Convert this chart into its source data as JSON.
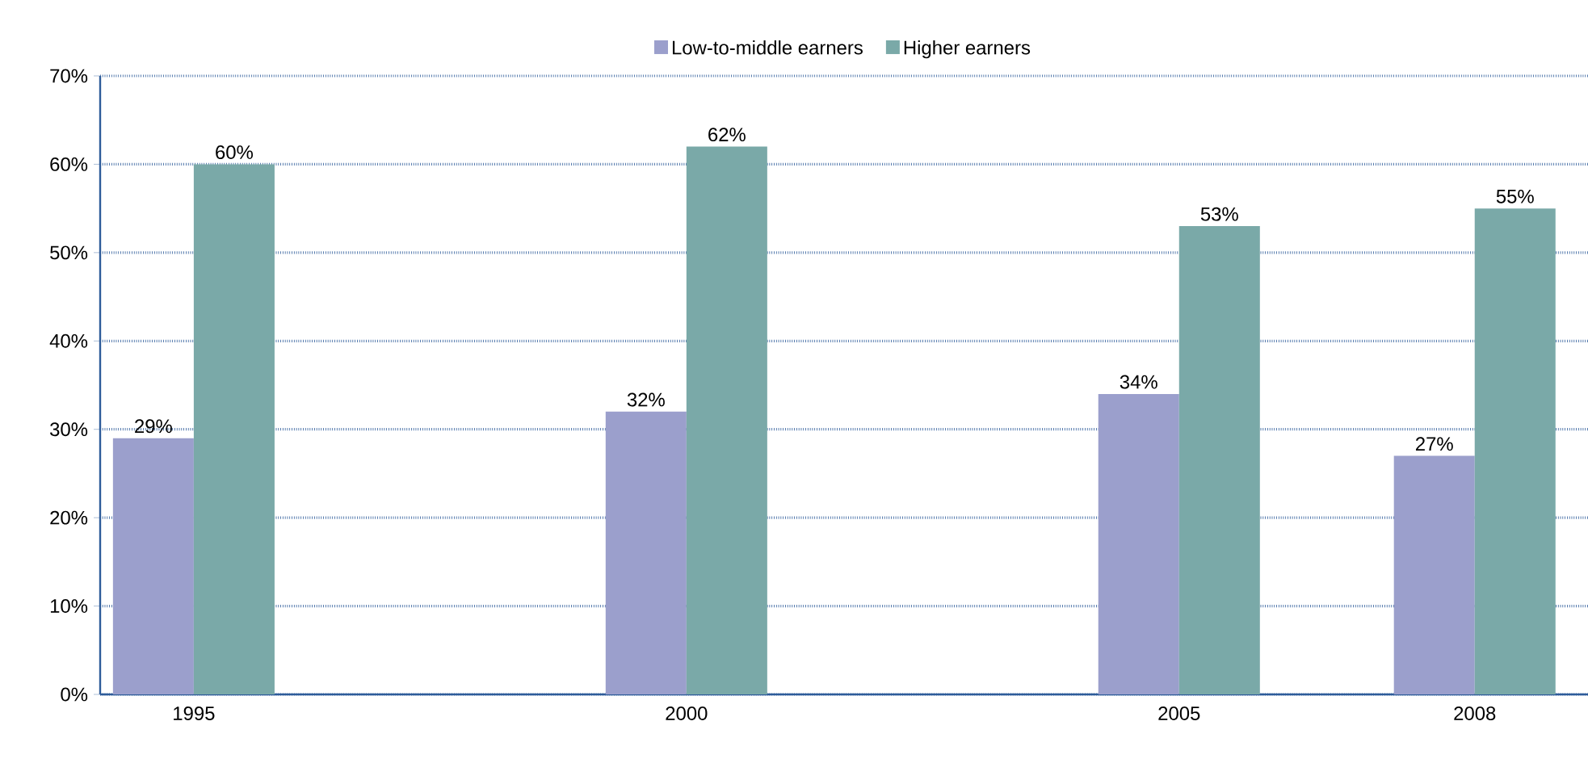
{
  "chart_data": {
    "type": "bar",
    "x": [
      1995,
      2000,
      2005,
      2008
    ],
    "series": [
      {
        "name": "Low-to-middle earners",
        "color": "#9b9fcc",
        "values": [
          29,
          32,
          34,
          27
        ],
        "value_labels": [
          "29%",
          "32%",
          "34%",
          "27%"
        ]
      },
      {
        "name": "Higher earners",
        "color": "#7aa9a8",
        "values": [
          60,
          62,
          53,
          55
        ],
        "value_labels": [
          "60%",
          "62%",
          "53%",
          "55%"
        ]
      }
    ],
    "xlim": [
      1994.05,
      2009.15
    ],
    "xticks": [
      1995,
      2000,
      2005,
      2008
    ],
    "ylim": [
      0,
      70
    ],
    "yticks": [
      {
        "value": 0,
        "label": "0%"
      },
      {
        "value": 10,
        "label": "10%"
      },
      {
        "value": 20,
        "label": "20%"
      },
      {
        "value": 30,
        "label": "30%"
      },
      {
        "value": 40,
        "label": "40%"
      },
      {
        "value": 50,
        "label": "50%"
      },
      {
        "value": 60,
        "label": "60%"
      },
      {
        "value": 70,
        "label": "70%"
      }
    ],
    "grid": "y",
    "legend": "top"
  }
}
